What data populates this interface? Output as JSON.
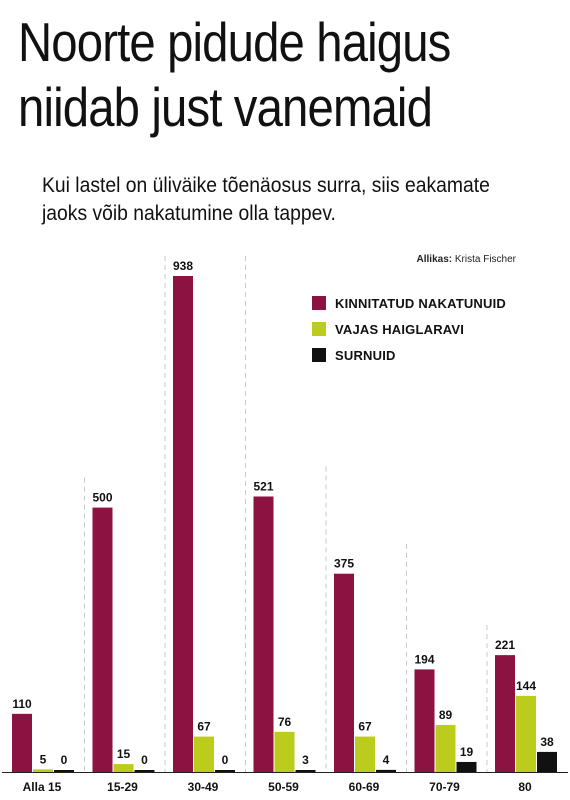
{
  "header": {
    "title_line1": "Noorte pidude haigus",
    "title_line2": "niidab just vanemaid",
    "subtitle": "Kui lastel on üliväike tõenäosus surra, siis eakamate jaoks võib nakatumine olla tappev.",
    "source_label": "Allikas:",
    "source_name": "Krista Fischer"
  },
  "colors": {
    "confirmed": "#8c1242",
    "hospital": "#bccc1c",
    "deaths": "#111111"
  },
  "chart_data": {
    "type": "bar",
    "title": "Noorte pidude haigus niidab just vanemaid",
    "categories": [
      "Alla 15",
      "15-29",
      "30-49",
      "50-59",
      "60-69",
      "70-79",
      "80"
    ],
    "series": [
      {
        "name": "KINNITATUD NAKATUNUID",
        "values": [
          110,
          500,
          938,
          521,
          375,
          194,
          221
        ]
      },
      {
        "name": "VAJAS HAIGLARAVI",
        "values": [
          5,
          15,
          67,
          76,
          67,
          89,
          144
        ]
      },
      {
        "name": "SURNUID",
        "values": [
          0,
          0,
          0,
          3,
          4,
          19,
          38
        ]
      }
    ],
    "ylim": [
      0,
      938
    ],
    "grid": false,
    "legend_position": "top-right"
  }
}
